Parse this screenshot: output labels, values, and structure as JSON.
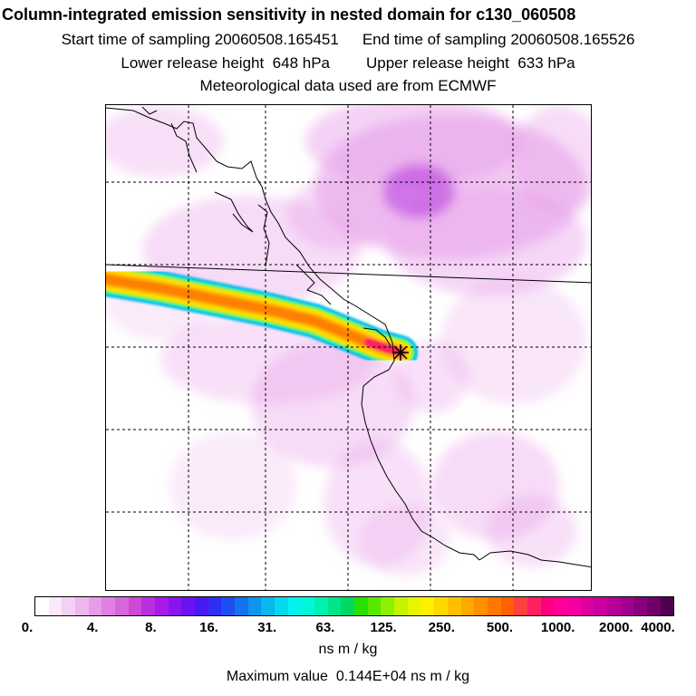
{
  "header": {
    "title": "Column-integrated emission sensitivity in nested domain for c130_060508",
    "start_label": "Start time of sampling",
    "start_value": "20060508.165451",
    "end_label": "End time of sampling",
    "end_value": "20060508.165526",
    "lower_label": "Lower release height",
    "lower_value": "648 hPa",
    "upper_label": "Upper release height",
    "upper_value": "633 hPa",
    "met_note": "Meteorological data used are from ECMWF"
  },
  "colorbar": {
    "tick_labels": [
      "0.",
      "4.",
      "8.",
      "16.",
      "31.",
      "63.",
      "125.",
      "250.",
      "500.",
      "1000.",
      "2000.",
      "4000."
    ],
    "colors": [
      "#ffffff",
      "#fbe8fb",
      "#f5d0f5",
      "#efb6f0",
      "#e79ce9",
      "#df80e2",
      "#d766dc",
      "#cc4ad6",
      "#bb2ede",
      "#a81ae8",
      "#8a14ee",
      "#6a12f0",
      "#4a18f2",
      "#2f2ef4",
      "#1c50f2",
      "#1272f0",
      "#0c96ee",
      "#08b8ee",
      "#06d8ee",
      "#04f2ee",
      "#00f8d4",
      "#00f0b0",
      "#00e48a",
      "#00d862",
      "#28e000",
      "#58e800",
      "#8cf000",
      "#c4f400",
      "#e8f400",
      "#fff000",
      "#ffd800",
      "#ffc000",
      "#ffa800",
      "#ff9000",
      "#ff7800",
      "#ff6000",
      "#ff4040",
      "#ff2060",
      "#ff0080",
      "#ff0098",
      "#f400a0",
      "#e000a0",
      "#cc00a0",
      "#b60098",
      "#a00090",
      "#88007c",
      "#700068",
      "#500050"
    ],
    "unit": "ns m / kg"
  },
  "footer": {
    "max_label": "Maximum value",
    "max_value": "0.144E+04",
    "max_unit": "ns m / kg"
  },
  "map": {
    "release_marker": "release-point-star-icon",
    "plume_colors": {
      "edge": "#00b8f0",
      "mid": "#ffe000",
      "core": "#ff8000",
      "hot": "#ff2060"
    },
    "background_shading": "#e79ce9",
    "coastline_color": "#000000",
    "gridline_style": "dashed"
  }
}
